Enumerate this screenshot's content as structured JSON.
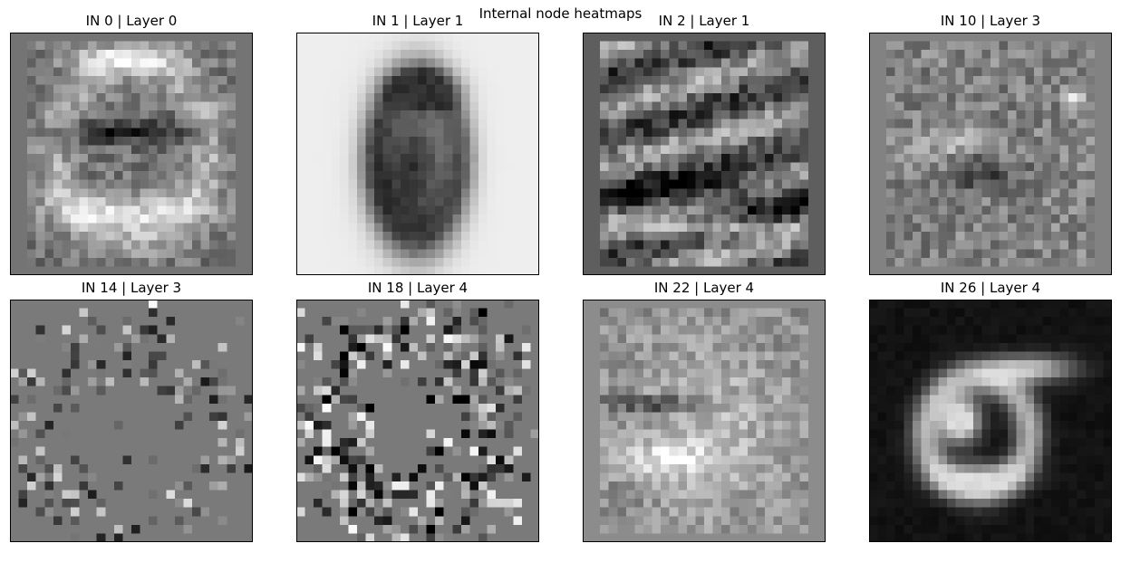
{
  "suptitle": "Internal node heatmaps",
  "chart_data": {
    "type": "heatmap",
    "colormap": "gray",
    "grid": false,
    "ticks": false,
    "image_size": [
      28,
      28
    ],
    "panels": [
      {
        "title": "IN 0 | Layer 0",
        "background": "#747474",
        "pattern": "zero-like loop with bright upper and lower bands and a dark horizontal stroke"
      },
      {
        "title": "IN 1 | Layer 1",
        "background": "#eeeeee",
        "pattern": "dark blurred digit on light background"
      },
      {
        "title": "IN 2 | Layer 1",
        "background": "#5e5e5e",
        "pattern": "mottled horizontal bands, dark lower band, bright bottom stripe"
      },
      {
        "title": "IN 10 | Layer 3",
        "background": "#828282",
        "pattern": "noisy texture with bright upper-right spot"
      },
      {
        "title": "IN 14 | Layer 3",
        "background": "#7a7a7a",
        "pattern": "sparse speckles forming a ring"
      },
      {
        "title": "IN 18 | Layer 4",
        "background": "#7a7a7a",
        "pattern": "dense high-contrast speckles forming a ring"
      },
      {
        "title": "IN 22 | Layer 4",
        "background": "#8c8c8c",
        "pattern": "bright blob with dark horizontal stroke"
      },
      {
        "title": "IN 26 | Layer 4",
        "background": "#121212",
        "pattern": "bright blurred digit on dark background"
      }
    ]
  }
}
